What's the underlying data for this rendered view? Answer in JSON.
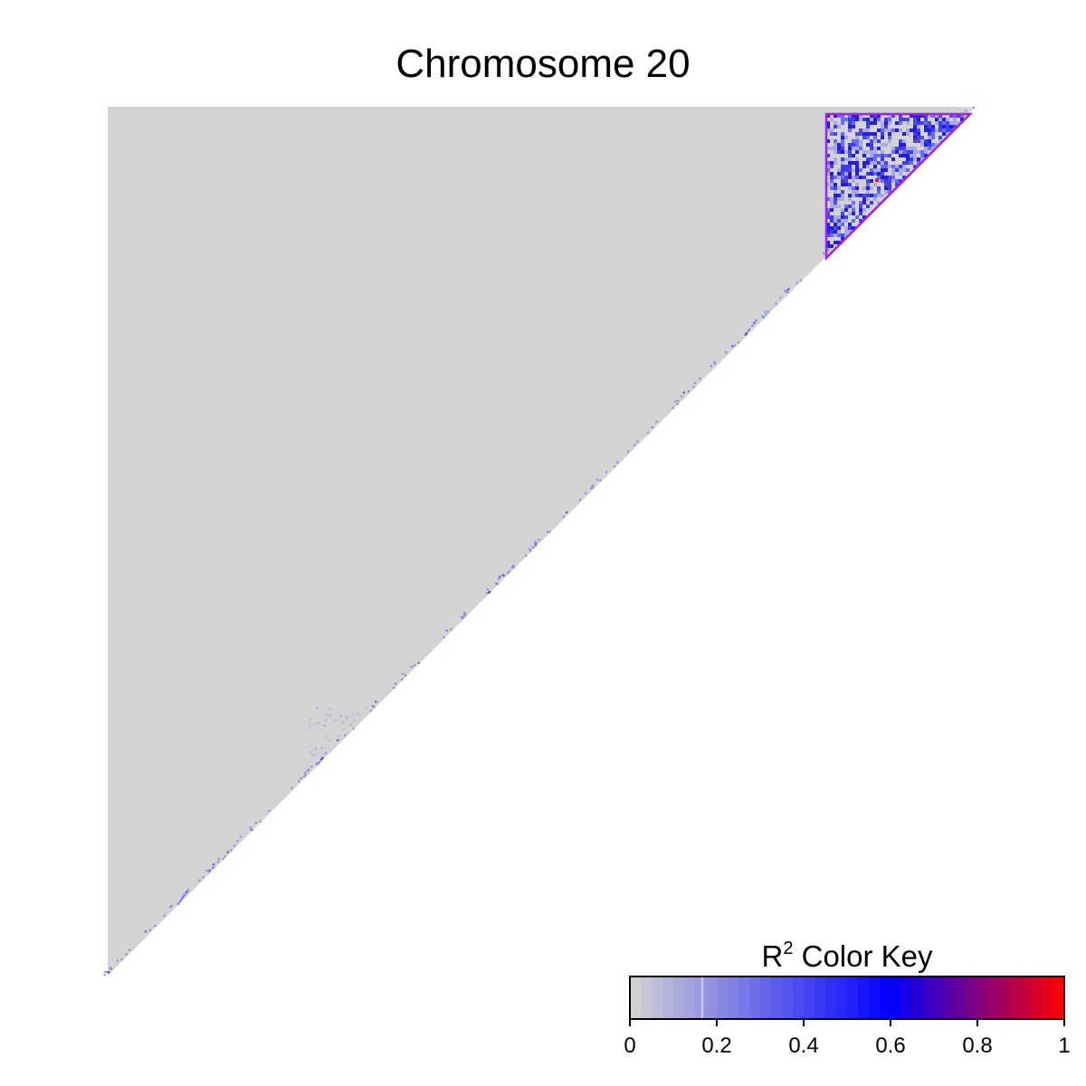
{
  "chart_data": {
    "type": "heatmap",
    "subtype": "linkage-disequilibrium-triangle",
    "title": "Chromosome 20",
    "fill_color": "#d3d3d3",
    "highlight_block": {
      "description": "LD block outlined near the end of the chromosome",
      "outline_color": "#a020f0",
      "cell_colors": [
        "#6a6aff",
        "#3c3cf0",
        "#1e1ee6",
        "#4a4ad8",
        "#2a1ec8"
      ]
    },
    "color_key": {
      "title": "R",
      "title_superscript": "2",
      "title_suffix": "Color Key",
      "range": [
        0,
        1
      ],
      "ticks": [
        "0",
        "0.2",
        "0.4",
        "0.6",
        "0.8",
        "1"
      ],
      "tick_values": [
        0,
        0.2,
        0.4,
        0.6,
        0.8,
        1
      ],
      "color_stops": [
        {
          "value": 0.0,
          "color": "#d3d3d3"
        },
        {
          "value": 0.6,
          "color": "#0000ff"
        },
        {
          "value": 1.0,
          "color": "#ff0000"
        }
      ],
      "n_bins": 40
    }
  }
}
